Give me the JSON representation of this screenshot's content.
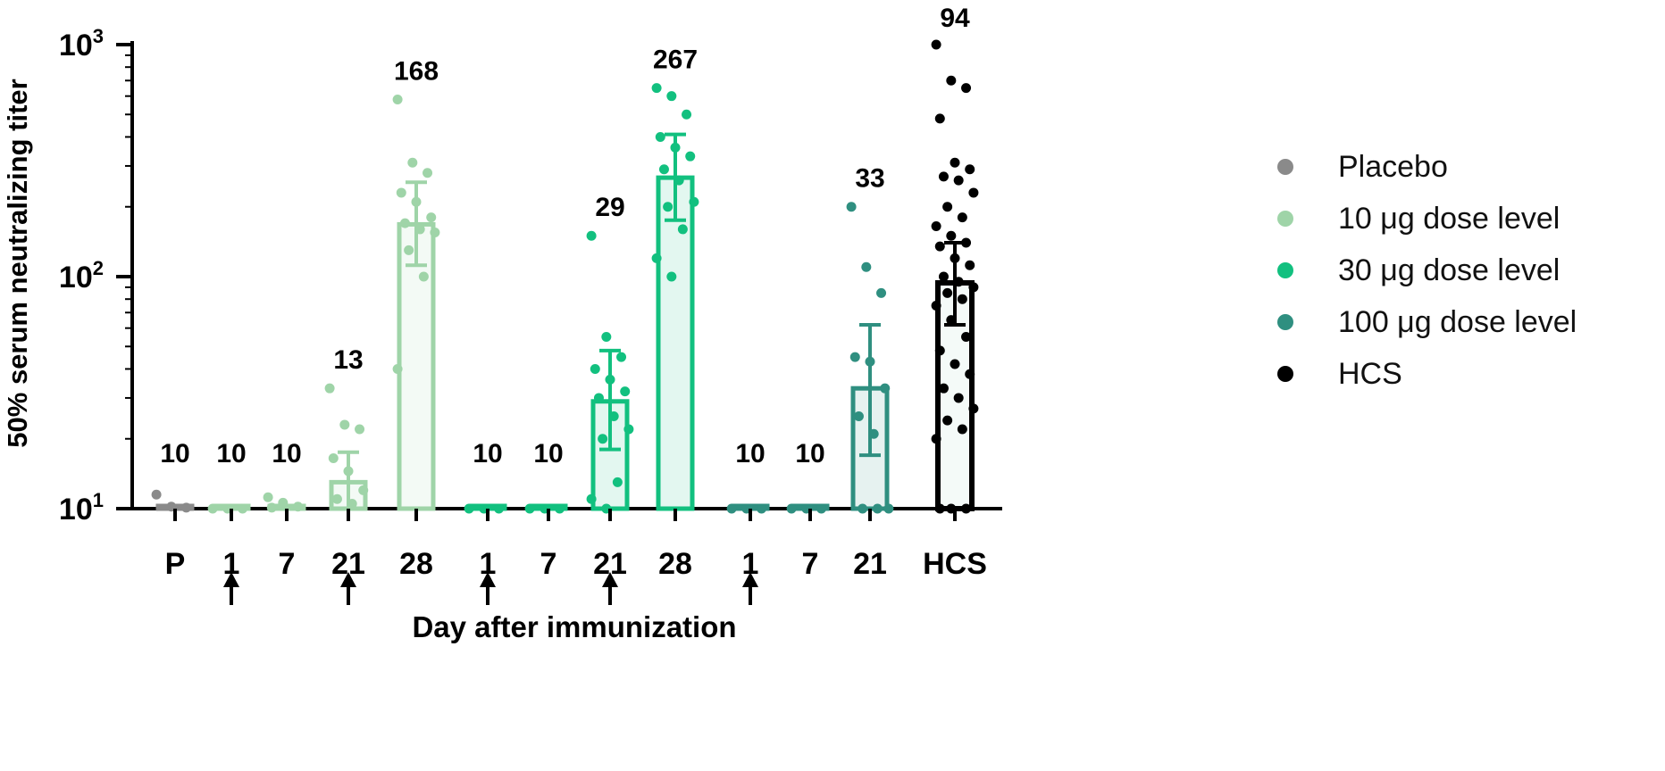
{
  "chart_data": {
    "type": "bar",
    "y_scale": "log",
    "ylim": [
      10,
      1000
    ],
    "ylabel": "50% serum neutralizing titer",
    "xlabel": "Day after immunization",
    "y_ticks": [
      {
        "value": 10,
        "base": "10",
        "exp": "1"
      },
      {
        "value": 100,
        "base": "10",
        "exp": "2"
      },
      {
        "value": 1000,
        "base": "10",
        "exp": "3"
      }
    ],
    "legend_position": "right",
    "series": [
      {
        "name": "Placebo",
        "color": "#8a8a8a"
      },
      {
        "name": "10 μg dose level",
        "color": "#9fd4a8"
      },
      {
        "name": "30 μg dose level",
        "color": "#12c07f"
      },
      {
        "name": "100 μg dose level",
        "color": "#2f8f80"
      },
      {
        "name": "HCS",
        "color": "#000000"
      }
    ],
    "groups": [
      {
        "category": "P",
        "series": "Placebo",
        "value": 10,
        "label": "10",
        "err": null,
        "arrow": false,
        "points": [
          11.5,
          10.2,
          10.1
        ]
      },
      {
        "category": "1",
        "series": "10 μg dose level",
        "value": 10,
        "label": "10",
        "err": null,
        "arrow": true,
        "points": [
          10,
          10,
          10
        ]
      },
      {
        "category": "7",
        "series": "10 μg dose level",
        "value": 10,
        "label": "10",
        "err": null,
        "arrow": false,
        "points": [
          11.2,
          10.6,
          10.2,
          10.1
        ]
      },
      {
        "category": "21",
        "series": "10 μg dose level",
        "value": 13,
        "label": "13",
        "err": [
          10,
          17.5
        ],
        "arrow": true,
        "points": [
          33,
          23,
          22,
          16.5,
          14.5,
          12,
          11,
          10.5
        ]
      },
      {
        "category": "28",
        "series": "10 μg dose level",
        "value": 168,
        "label": "168",
        "err": [
          112,
          255
        ],
        "arrow": false,
        "points": [
          580,
          310,
          280,
          230,
          210,
          180,
          170,
          160,
          155,
          130,
          100,
          40
        ]
      },
      {
        "category": "1",
        "series": "30 μg dose level",
        "value": 10,
        "label": "10",
        "err": null,
        "arrow": true,
        "points": [
          10,
          10,
          10
        ]
      },
      {
        "category": "7",
        "series": "30 μg dose level",
        "value": 10,
        "label": "10",
        "err": null,
        "arrow": false,
        "points": [
          10,
          10,
          10
        ]
      },
      {
        "category": "21",
        "series": "30 μg dose level",
        "value": 29,
        "label": "29",
        "err": [
          18,
          48
        ],
        "arrow": true,
        "points": [
          150,
          55,
          45,
          40,
          36,
          32,
          30,
          25,
          22,
          20,
          13,
          11,
          10
        ]
      },
      {
        "category": "28",
        "series": "30 μg dose level",
        "value": 267,
        "label": "267",
        "err": [
          175,
          410
        ],
        "arrow": false,
        "points": [
          650,
          600,
          500,
          400,
          360,
          330,
          290,
          260,
          210,
          200,
          160,
          120,
          100
        ]
      },
      {
        "category": "1",
        "series": "100 μg dose level",
        "value": 10,
        "label": "10",
        "err": null,
        "arrow": true,
        "points": [
          10,
          10,
          10
        ]
      },
      {
        "category": "7",
        "series": "100 μg dose level",
        "value": 10,
        "label": "10",
        "err": null,
        "arrow": false,
        "points": [
          10,
          10,
          10
        ]
      },
      {
        "category": "21",
        "series": "100 μg dose level",
        "value": 33,
        "label": "33",
        "err": [
          17,
          62
        ],
        "arrow": false,
        "points": [
          200,
          110,
          85,
          45,
          43,
          33,
          25,
          21,
          10,
          10,
          10
        ]
      },
      {
        "category": "HCS",
        "series": "HCS",
        "value": 94,
        "label": "94",
        "err": [
          62,
          140
        ],
        "arrow": false,
        "points": [
          1000,
          700,
          650,
          480,
          310,
          290,
          270,
          260,
          230,
          200,
          180,
          165,
          150,
          140,
          135,
          120,
          112,
          100,
          95,
          90,
          85,
          80,
          75,
          65,
          55,
          48,
          42,
          38,
          33,
          30,
          27,
          24,
          22,
          20,
          10,
          10,
          10
        ]
      }
    ]
  }
}
